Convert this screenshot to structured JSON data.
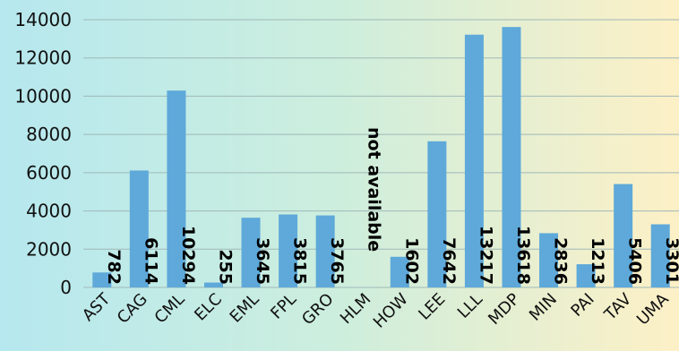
{
  "chart_data": {
    "type": "bar",
    "title": "",
    "xlabel": "",
    "ylabel": "",
    "ylim": [
      0,
      14000
    ],
    "yticks": [
      0,
      2000,
      4000,
      6000,
      8000,
      10000,
      12000,
      14000
    ],
    "grid": true,
    "legend": "none",
    "bar_color": "#5ea9d9",
    "categories": [
      "AST",
      "CAG",
      "CML",
      "ELC",
      "EML",
      "FPL",
      "GRO",
      "HLM",
      "HOW",
      "LEE",
      "LLL",
      "MDP",
      "MIN",
      "PAI",
      "TAV",
      "UMA"
    ],
    "values": [
      782,
      6114,
      10294,
      255,
      3645,
      3815,
      3765,
      null,
      1602,
      7642,
      13217,
      13618,
      2836,
      1213,
      5406,
      3301
    ],
    "data_labels": [
      "782",
      "6114",
      "10294",
      "255",
      "3645",
      "3815",
      "3765",
      "not available",
      "1602",
      "7642",
      "13217",
      "13618",
      "2836",
      "1213",
      "5406",
      "3301"
    ]
  }
}
